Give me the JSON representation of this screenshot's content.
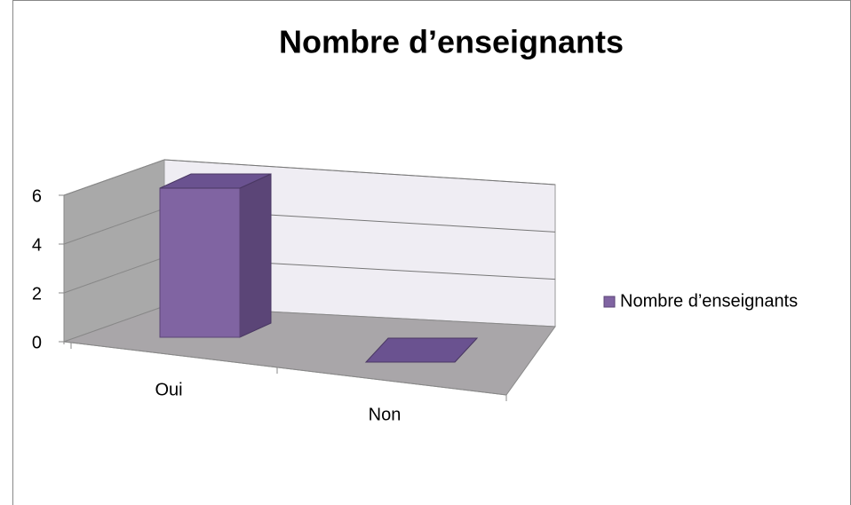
{
  "chart_data": {
    "type": "bar3d",
    "title": "Nombre d’enseignants",
    "categories": [
      "Oui",
      "Non"
    ],
    "series": [
      {
        "name": "Nombre d’enseignants",
        "color": "#8064a2",
        "values": [
          6,
          0
        ]
      }
    ],
    "ylim": [
      0,
      6
    ],
    "yticks": [
      0,
      2,
      4,
      6
    ],
    "grid": true,
    "legend": "right"
  }
}
